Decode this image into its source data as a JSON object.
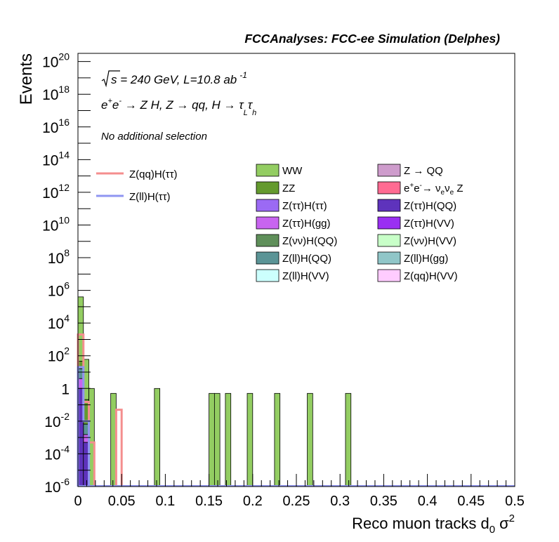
{
  "chart_data": {
    "type": "bar",
    "title": "FCCAnalyses: FCC-ee Simulation (Delphes)",
    "xlabel_main": "Reco muon tracks d",
    "xlabel_sub": "0",
    "xlabel_sigma": "σ",
    "xlabel_sup": "2",
    "ylabel": "Events",
    "xlim": [
      0,
      0.5
    ],
    "ylim_log10": [
      -6,
      20.5
    ],
    "log_y": true,
    "grid": false,
    "x_ticks": [
      "0",
      "0.05",
      "0.1",
      "0.15",
      "0.2",
      "0.25",
      "0.3",
      "0.35",
      "0.4",
      "0.45",
      "0.5"
    ],
    "x_tick_values": [
      0,
      0.05,
      0.1,
      0.15,
      0.2,
      0.25,
      0.3,
      0.35,
      0.4,
      0.45,
      0.5
    ],
    "y_tick_exponents": [
      -6,
      -4,
      -2,
      0,
      2,
      4,
      6,
      8,
      10,
      12,
      14,
      16,
      18,
      20
    ],
    "y_tick_base": "10",
    "y_tick_one_label": "1",
    "annotations": {
      "line1_sqrt": "s",
      "line1_rest": " = 240 GeV, L=10.8 ab",
      "line1_sup": "-1",
      "line2_a": "e",
      "line2_a_sup": "+",
      "line2_b": "e",
      "line2_b_sup": "-",
      "line2_c": " → Z H, Z  → qq, H  → τ",
      "line2_c_sub": "L",
      "line2_d": "τ",
      "line2_d_sub": "h",
      "line3": "No additional selection"
    },
    "bin_width": 0.00625,
    "stacked_backgrounds": [
      {
        "name": "WW",
        "color": "#93cd62",
        "bins": [
          {
            "x": 0.0,
            "value": 400000
          },
          {
            "x": 0.00625,
            "value": 60
          },
          {
            "x": 0.0125,
            "value": 1
          },
          {
            "x": 0.0375,
            "value": 0.5
          },
          {
            "x": 0.0875,
            "value": 1
          },
          {
            "x": 0.15,
            "value": 0.5
          },
          {
            "x": 0.15625,
            "value": 0.5
          },
          {
            "x": 0.16875,
            "value": 0.5
          },
          {
            "x": 0.19375,
            "value": 0.5
          },
          {
            "x": 0.225,
            "value": 0.5
          },
          {
            "x": 0.2625,
            "value": 0.5
          },
          {
            "x": 0.30625,
            "value": 0.5
          }
        ]
      },
      {
        "name": "ZZ",
        "color": "#649a2e",
        "bins": [
          {
            "x": 0.0,
            "value": 30
          },
          {
            "x": 0.00625,
            "value": 0.2
          }
        ]
      },
      {
        "name": "Z(ll)H(QQ)",
        "color": "#5b9496",
        "bins": [
          {
            "x": 0.0,
            "value": 12
          },
          {
            "x": 0.00625,
            "value": 0.005
          }
        ]
      },
      {
        "name": "Z(ττ)H(gg)",
        "color": "#c864f0",
        "bins": [
          {
            "x": 0.0,
            "value": 3
          },
          {
            "x": 0.00625,
            "value": 0.001
          }
        ]
      },
      {
        "name": "Z(ττ)H(QQ)",
        "color": "#5e33bc",
        "bins": [
          {
            "x": 0.0,
            "value": 1
          },
          {
            "x": 0.00625,
            "value": 0.0005
          }
        ]
      },
      {
        "name": "Z → QQ",
        "color": "#ce9ccc",
        "bins": []
      }
    ],
    "signals": [
      {
        "name": "Z(qq)H(ττ)",
        "color": "#f48e8e",
        "linewidth": 3,
        "bins": [
          {
            "x": 0.0,
            "value": 2000
          },
          {
            "x": 0.00625,
            "value": 0.15
          },
          {
            "x": 0.0125,
            "value": 0.0005
          },
          {
            "x": 0.04375,
            "value": 0.05
          }
        ]
      },
      {
        "name": "Z(ll)H(ττ)",
        "color": "#8f95f2",
        "linewidth": 3,
        "bins": [
          {
            "x": 0.0,
            "value": 20
          },
          {
            "x": 0.00625,
            "value": 0.01
          }
        ]
      }
    ],
    "legend_signals": [
      {
        "name": "Z(qq)H(ττ)",
        "color": "#f48e8e"
      },
      {
        "name": "Z(ll)H(ττ)",
        "color": "#8f95f2"
      }
    ],
    "legend_backgrounds": [
      {
        "name": "WW",
        "color": "#93cd62"
      },
      {
        "name": "Z → QQ",
        "color": "#ce9ccc"
      },
      {
        "name": "ZZ",
        "color": "#649a2e"
      },
      {
        "name": "e+e-→ νeνe Z",
        "color": "#ff6b92",
        "rich": true
      },
      {
        "name": "Z(ττ)H(ττ)",
        "color": "#9b6af4"
      },
      {
        "name": "Z(ττ)H(QQ)",
        "color": "#5e33bc"
      },
      {
        "name": "Z(ττ)H(gg)",
        "color": "#c864f0"
      },
      {
        "name": "Z(ττ)H(VV)",
        "color": "#9a2ff2"
      },
      {
        "name": "Z(νν)H(QQ)",
        "color": "#5f8f5a"
      },
      {
        "name": "Z(νν)H(VV)",
        "color": "#c8ffc8"
      },
      {
        "name": "Z(ll)H(QQ)",
        "color": "#5b9496"
      },
      {
        "name": "Z(ll)H(gg)",
        "color": "#90c6c8"
      },
      {
        "name": "Z(ll)H(VV)",
        "color": "#ccfffd"
      },
      {
        "name": "Z(qq)H(VV)",
        "color": "#ffccff"
      }
    ]
  }
}
